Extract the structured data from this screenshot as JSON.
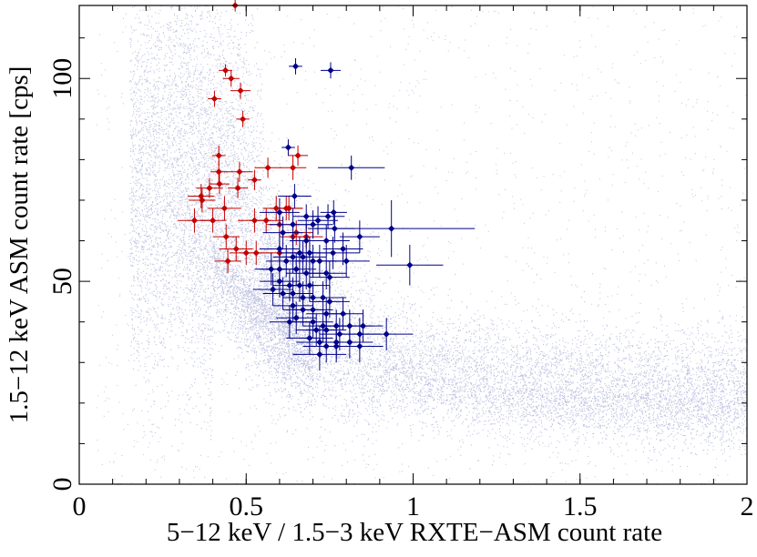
{
  "chart_data": {
    "type": "scatter",
    "title": "",
    "xlabel": "5−12 keV / 1.5−3 keV  RXTE−ASM count rate",
    "ylabel": "1.5−12 keV ASM count rate [cps]",
    "xlim": [
      0,
      2
    ],
    "ylim": [
      0,
      118
    ],
    "x_ticks": [
      "0",
      "0.5",
      "1",
      "1.5",
      "2"
    ],
    "x_tick_values": [
      0,
      0.5,
      1,
      1.5,
      2
    ],
    "y_ticks": [
      "0",
      "50",
      "100"
    ],
    "y_tick_values": [
      0,
      50,
      100
    ],
    "grid": false,
    "colors": {
      "background_cloud": "#b4b9dc",
      "red_series": "#c40000",
      "blue_series": "#00008b"
    },
    "background_cloud_shape": {
      "description_points": [
        [
          0.25,
          118
        ],
        [
          0.35,
          110
        ],
        [
          0.45,
          90
        ],
        [
          0.5,
          75
        ],
        [
          0.6,
          58
        ],
        [
          0.7,
          48
        ],
        [
          0.8,
          40
        ],
        [
          1.0,
          33
        ],
        [
          1.2,
          30
        ],
        [
          1.5,
          26
        ],
        [
          1.8,
          24
        ],
        [
          2.0,
          22
        ]
      ]
    },
    "series": [
      {
        "color": "red",
        "points": [
          [
            0.467,
            118,
            0.02,
            1.5
          ],
          [
            0.438,
            102,
            0.02,
            1.5
          ],
          [
            0.455,
            100,
            0.025,
            2
          ],
          [
            0.483,
            97,
            0.03,
            2
          ],
          [
            0.405,
            95,
            0.02,
            2
          ],
          [
            0.49,
            90,
            0.02,
            2
          ],
          [
            0.418,
            81,
            0.02,
            2.5
          ],
          [
            0.418,
            77,
            0.025,
            2.5
          ],
          [
            0.48,
            77,
            0.04,
            2.5
          ],
          [
            0.565,
            78,
            0.04,
            2.5
          ],
          [
            0.655,
            81,
            0.03,
            2.5
          ],
          [
            0.64,
            78,
            0.04,
            3
          ],
          [
            0.39,
            73,
            0.04,
            2.5
          ],
          [
            0.42,
            74,
            0.03,
            2.5
          ],
          [
            0.475,
            73,
            0.03,
            2.5
          ],
          [
            0.525,
            75,
            0.02,
            2.5
          ],
          [
            0.365,
            71,
            0.04,
            3
          ],
          [
            0.368,
            70,
            0.04,
            3
          ],
          [
            0.435,
            68,
            0.05,
            3
          ],
          [
            0.59,
            68,
            0.04,
            3
          ],
          [
            0.62,
            68,
            0.05,
            3
          ],
          [
            0.628,
            68,
            0.04,
            3
          ],
          [
            0.345,
            65,
            0.05,
            3
          ],
          [
            0.4,
            65,
            0.04,
            3
          ],
          [
            0.525,
            65,
            0.05,
            3
          ],
          [
            0.56,
            65,
            0.05,
            3
          ],
          [
            0.6,
            64,
            0.04,
            3
          ],
          [
            0.65,
            62,
            0.05,
            3
          ],
          [
            0.44,
            61,
            0.04,
            3
          ],
          [
            0.64,
            61,
            0.04,
            3
          ],
          [
            0.68,
            61,
            0.05,
            3
          ],
          [
            0.47,
            58,
            0.05,
            3
          ],
          [
            0.5,
            57,
            0.05,
            3
          ],
          [
            0.445,
            55,
            0.04,
            3
          ],
          [
            0.53,
            57,
            0.05,
            3
          ],
          [
            0.6,
            57,
            0.05,
            3
          ]
        ]
      },
      {
        "color": "blue",
        "points": [
          [
            0.648,
            103,
            0.02,
            2
          ],
          [
            0.753,
            102,
            0.03,
            2
          ],
          [
            0.626,
            83,
            0.02,
            2
          ],
          [
            0.815,
            78,
            0.1,
            3
          ],
          [
            0.645,
            71,
            0.05,
            3
          ],
          [
            0.6,
            67,
            0.06,
            3.5
          ],
          [
            0.68,
            66,
            0.04,
            3
          ],
          [
            0.715,
            65,
            0.06,
            3.5
          ],
          [
            0.745,
            66,
            0.05,
            3
          ],
          [
            0.762,
            67,
            0.04,
            3
          ],
          [
            0.64,
            64,
            0.07,
            4
          ],
          [
            0.7,
            64,
            0.06,
            3.5
          ],
          [
            0.765,
            63,
            0.06,
            3.5
          ],
          [
            0.935,
            63,
            0.25,
            7
          ],
          [
            0.84,
            61,
            0.06,
            4
          ],
          [
            0.61,
            62,
            0.06,
            4
          ],
          [
            0.68,
            60,
            0.05,
            4
          ],
          [
            0.74,
            60,
            0.07,
            4
          ],
          [
            0.79,
            58,
            0.06,
            4
          ],
          [
            0.6,
            58,
            0.06,
            4
          ],
          [
            0.66,
            57,
            0.06,
            4
          ],
          [
            0.69,
            57,
            0.07,
            4
          ],
          [
            0.76,
            57,
            0.08,
            4
          ],
          [
            0.62,
            55,
            0.06,
            4
          ],
          [
            0.64,
            56,
            0.06,
            4
          ],
          [
            0.67,
            56,
            0.07,
            4
          ],
          [
            0.7,
            55,
            0.07,
            4
          ],
          [
            0.72,
            55,
            0.07,
            4
          ],
          [
            0.8,
            55,
            0.07,
            4
          ],
          [
            0.99,
            54,
            0.1,
            5
          ],
          [
            0.575,
            53,
            0.05,
            4
          ],
          [
            0.6,
            53,
            0.06,
            4
          ],
          [
            0.65,
            53,
            0.06,
            4
          ],
          [
            0.68,
            52,
            0.06,
            4
          ],
          [
            0.74,
            52,
            0.06,
            4
          ],
          [
            0.75,
            51,
            0.06,
            4
          ],
          [
            0.6,
            50,
            0.06,
            4
          ],
          [
            0.63,
            49,
            0.05,
            4
          ],
          [
            0.66,
            49,
            0.05,
            4
          ],
          [
            0.69,
            49,
            0.06,
            4
          ],
          [
            0.58,
            48,
            0.06,
            4
          ],
          [
            0.61,
            47,
            0.06,
            4
          ],
          [
            0.64,
            47,
            0.06,
            4
          ],
          [
            0.67,
            46,
            0.06,
            4
          ],
          [
            0.7,
            46,
            0.07,
            4
          ],
          [
            0.73,
            46,
            0.07,
            4
          ],
          [
            0.75,
            45,
            0.06,
            4
          ],
          [
            0.64,
            44,
            0.06,
            4
          ],
          [
            0.67,
            43,
            0.06,
            4
          ],
          [
            0.7,
            43,
            0.06,
            4
          ],
          [
            0.74,
            42,
            0.06,
            4
          ],
          [
            0.79,
            42,
            0.06,
            4
          ],
          [
            0.63,
            40,
            0.06,
            4
          ],
          [
            0.65,
            41,
            0.06,
            4
          ],
          [
            0.7,
            40,
            0.06,
            4
          ],
          [
            0.73,
            39,
            0.06,
            4
          ],
          [
            0.77,
            39,
            0.06,
            4
          ],
          [
            0.81,
            39,
            0.07,
            4
          ],
          [
            0.85,
            39,
            0.06,
            4
          ],
          [
            0.71,
            38,
            0.06,
            4
          ],
          [
            0.74,
            38,
            0.06,
            4
          ],
          [
            0.78,
            37,
            0.06,
            4
          ],
          [
            0.84,
            37,
            0.06,
            4
          ],
          [
            0.92,
            37,
            0.08,
            4
          ],
          [
            0.69,
            36,
            0.07,
            4
          ],
          [
            0.72,
            35,
            0.07,
            4
          ],
          [
            0.77,
            35,
            0.06,
            4
          ],
          [
            0.81,
            35,
            0.07,
            4
          ],
          [
            0.84,
            34,
            0.07,
            4
          ],
          [
            0.74,
            34,
            0.07,
            4
          ],
          [
            0.77,
            34,
            0.06,
            4
          ],
          [
            0.72,
            32,
            0.08,
            4
          ]
        ]
      }
    ]
  }
}
